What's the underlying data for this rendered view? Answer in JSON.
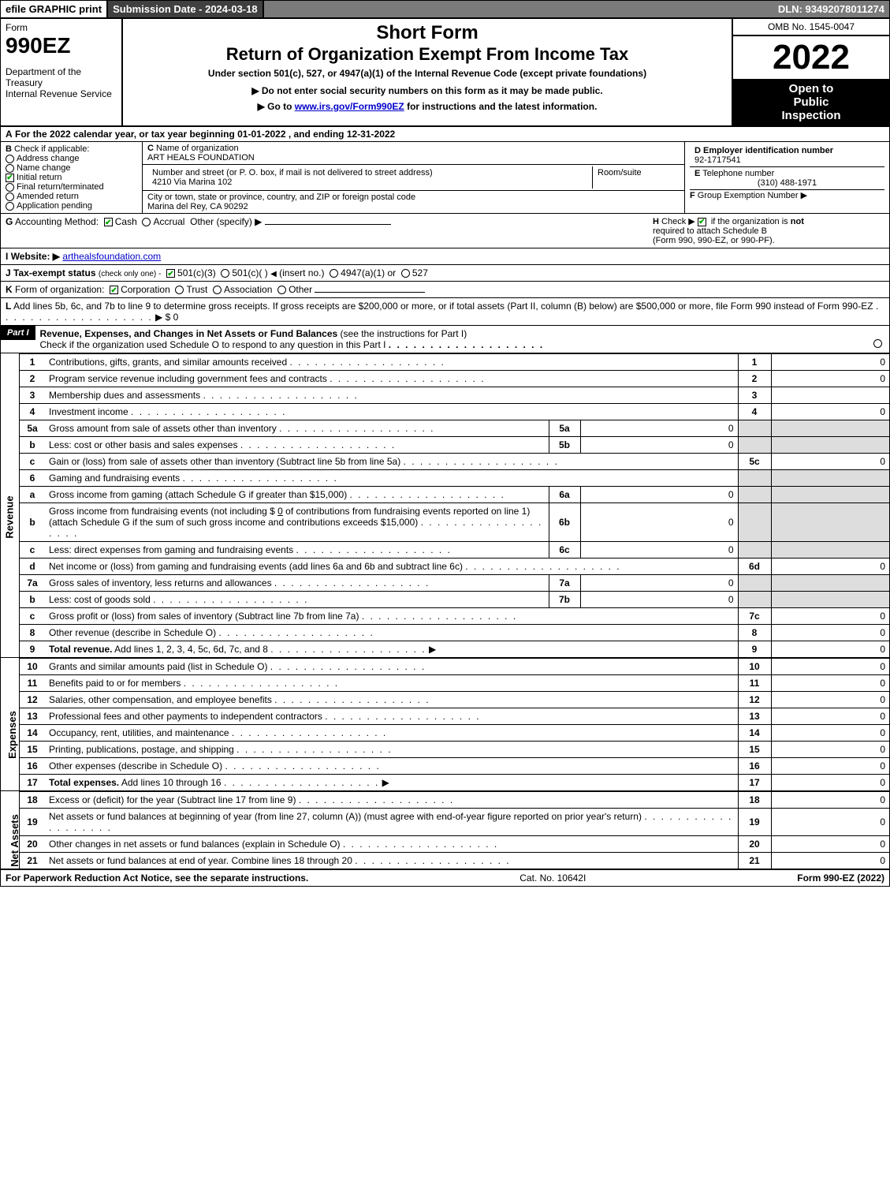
{
  "topbar": {
    "efile": "efile GRAPHIC print",
    "submission": "Submission Date - 2024-03-18",
    "dln": "DLN: 93492078011274"
  },
  "header": {
    "form_label": "Form",
    "form_no": "990EZ",
    "dept1": "Department of the Treasury",
    "dept2": "Internal Revenue Service",
    "short_form": "Short Form",
    "return_title": "Return of Organization Exempt From Income Tax",
    "under_section": "Under section 501(c), 527, or 4947(a)(1) of the Internal Revenue Code (except private foundations)",
    "no_enter": "▶ Do not enter social security numbers on this form as it may be made public.",
    "goto_pre": "▶ Go to ",
    "goto_link": "www.irs.gov/Form990EZ",
    "goto_post": " for instructions and the latest information.",
    "omb": "OMB No. 1545-0047",
    "year": "2022",
    "inspect1": "Open to",
    "inspect2": "Public",
    "inspect3": "Inspection"
  },
  "A": {
    "label": "A",
    "text": "For the 2022 calendar year, or tax year beginning 01-01-2022 , and ending 12-31-2022"
  },
  "B": {
    "label": "B",
    "check_if": "Check if applicable:",
    "addr_change": "Address change",
    "name_change": "Name change",
    "initial_return": "Initial return",
    "final_return": "Final return/terminated",
    "amended": "Amended return",
    "app_pending": "Application pending"
  },
  "C": {
    "label": "C",
    "name_lbl": "Name of organization",
    "name": "ART HEALS FOUNDATION",
    "street_lbl": "Number and street (or P. O. box, if mail is not delivered to street address)",
    "room_lbl": "Room/suite",
    "street": "4210 Via Marina 102",
    "city_lbl": "City or town, state or province, country, and ZIP or foreign postal code",
    "city": "Marina del Rey, CA  90292"
  },
  "D": {
    "label": "D",
    "ein_lbl": "Employer identification number",
    "ein": "92-1717541"
  },
  "E": {
    "label": "E",
    "phone_lbl": "Telephone number",
    "phone": "(310) 488-1971"
  },
  "F": {
    "label": "F",
    "group_lbl": "Group Exemption Number",
    "arrow": "▶"
  },
  "G": {
    "label": "G",
    "acct_lbl": "Accounting Method:",
    "cash": "Cash",
    "accrual": "Accrual",
    "other": "Other (specify) ▶"
  },
  "H": {
    "label": "H",
    "text1": "Check ▶",
    "text2": "if the organization is",
    "not": "not",
    "text3": "required to attach Schedule B",
    "text4": "(Form 990, 990-EZ, or 990-PF)."
  },
  "I": {
    "label": "I",
    "website_lbl": "Website: ▶",
    "website": "arthealsfoundation.com"
  },
  "J": {
    "label": "J",
    "tax_exempt": "Tax-exempt status",
    "check_one": "(check only one) -",
    "c3": "501(c)(3)",
    "c": "501(c)(  )",
    "insert": "(insert no.)",
    "a1": "4947(a)(1) or",
    "527": "527"
  },
  "K": {
    "label": "K",
    "form_org": "Form of organization:",
    "corp": "Corporation",
    "trust": "Trust",
    "assoc": "Association",
    "other": "Other"
  },
  "L": {
    "label": "L",
    "text": "Add lines 5b, 6c, and 7b to line 9 to determine gross receipts. If gross receipts are $200,000 or more, or if total assets (Part II, column (B) below) are $500,000 or more, file Form 990 instead of Form 990-EZ",
    "amount": "▶ $ 0"
  },
  "partI": {
    "label": "Part I",
    "title": "Revenue, Expenses, and Changes in Net Assets or Fund Balances",
    "title2": "(see the instructions for Part I)",
    "checkif": "Check if the organization used Schedule O to respond to any question in this Part I"
  },
  "sections": {
    "revenue": "Revenue",
    "expenses": "Expenses",
    "netassets": "Net Assets"
  },
  "lines": [
    {
      "n": "1",
      "desc": "Contributions, gifts, grants, and similar amounts received",
      "rnum": "1",
      "rval": "0"
    },
    {
      "n": "2",
      "desc": "Program service revenue including government fees and contracts",
      "rnum": "2",
      "rval": "0"
    },
    {
      "n": "3",
      "desc": "Membership dues and assessments",
      "rnum": "3",
      "rval": ""
    },
    {
      "n": "4",
      "desc": "Investment income",
      "rnum": "4",
      "rval": "0"
    },
    {
      "n": "5a",
      "desc": "Gross amount from sale of assets other than inventory",
      "sub": "5a",
      "subv": "0",
      "shade": true
    },
    {
      "n": "b",
      "desc": "Less: cost or other basis and sales expenses",
      "sub": "5b",
      "subv": "0",
      "shade": true
    },
    {
      "n": "c",
      "desc": "Gain or (loss) from sale of assets other than inventory (Subtract line 5b from line 5a)",
      "rnum": "5c",
      "rval": "0"
    },
    {
      "n": "6",
      "desc": "Gaming and fundraising events",
      "shade": true,
      "noval": true
    },
    {
      "n": "a",
      "desc": "Gross income from gaming (attach Schedule G if greater than $15,000)",
      "sub": "6a",
      "subv": "0",
      "shade": true
    },
    {
      "n": "b",
      "desc": "Gross income from fundraising events (not including $",
      "desc2": "of contributions from fundraising events reported on line 1) (attach Schedule G if the sum of such gross income and contributions exceeds $15,000)",
      "fill": "0",
      "sub": "6b",
      "subv": "0",
      "shade": true
    },
    {
      "n": "c",
      "desc": "Less: direct expenses from gaming and fundraising events",
      "sub": "6c",
      "subv": "0",
      "shade": true
    },
    {
      "n": "d",
      "desc": "Net income or (loss) from gaming and fundraising events (add lines 6a and 6b and subtract line 6c)",
      "rnum": "6d",
      "rval": "0"
    },
    {
      "n": "7a",
      "desc": "Gross sales of inventory, less returns and allowances",
      "sub": "7a",
      "subv": "0",
      "shade": true
    },
    {
      "n": "b",
      "desc": "Less: cost of goods sold",
      "sub": "7b",
      "subv": "0",
      "shade": true
    },
    {
      "n": "c",
      "desc": "Gross profit or (loss) from sales of inventory (Subtract line 7b from line 7a)",
      "rnum": "7c",
      "rval": "0"
    },
    {
      "n": "8",
      "desc": "Other revenue (describe in Schedule O)",
      "rnum": "8",
      "rval": "0"
    },
    {
      "n": "9",
      "desc": "Total revenue. Add lines 1, 2, 3, 4, 5c, 6d, 7c, and 8",
      "bold": true,
      "arrow": true,
      "rnum": "9",
      "rval": "0"
    }
  ],
  "exp_lines": [
    {
      "n": "10",
      "desc": "Grants and similar amounts paid (list in Schedule O)",
      "rnum": "10",
      "rval": "0"
    },
    {
      "n": "11",
      "desc": "Benefits paid to or for members",
      "rnum": "11",
      "rval": "0"
    },
    {
      "n": "12",
      "desc": "Salaries, other compensation, and employee benefits",
      "rnum": "12",
      "rval": "0"
    },
    {
      "n": "13",
      "desc": "Professional fees and other payments to independent contractors",
      "rnum": "13",
      "rval": "0"
    },
    {
      "n": "14",
      "desc": "Occupancy, rent, utilities, and maintenance",
      "rnum": "14",
      "rval": "0"
    },
    {
      "n": "15",
      "desc": "Printing, publications, postage, and shipping",
      "rnum": "15",
      "rval": "0"
    },
    {
      "n": "16",
      "desc": "Other expenses (describe in Schedule O)",
      "rnum": "16",
      "rval": "0"
    },
    {
      "n": "17",
      "desc": "Total expenses. Add lines 10 through 16",
      "bold": true,
      "arrow": true,
      "rnum": "17",
      "rval": "0"
    }
  ],
  "na_lines": [
    {
      "n": "18",
      "desc": "Excess or (deficit) for the year (Subtract line 17 from line 9)",
      "rnum": "18",
      "rval": "0"
    },
    {
      "n": "19",
      "desc": "Net assets or fund balances at beginning of year (from line 27, column (A)) (must agree with end-of-year figure reported on prior year's return)",
      "rnum": "19",
      "rval": "0"
    },
    {
      "n": "20",
      "desc": "Other changes in net assets or fund balances (explain in Schedule O)",
      "rnum": "20",
      "rval": "0"
    },
    {
      "n": "21",
      "desc": "Net assets or fund balances at end of year. Combine lines 18 through 20",
      "rnum": "21",
      "rval": "0"
    }
  ],
  "footer": {
    "left": "For Paperwork Reduction Act Notice, see the separate instructions.",
    "mid": "Cat. No. 10642I",
    "right_pre": "Form ",
    "right_form": "990-EZ",
    "right_post": " (2022)"
  }
}
